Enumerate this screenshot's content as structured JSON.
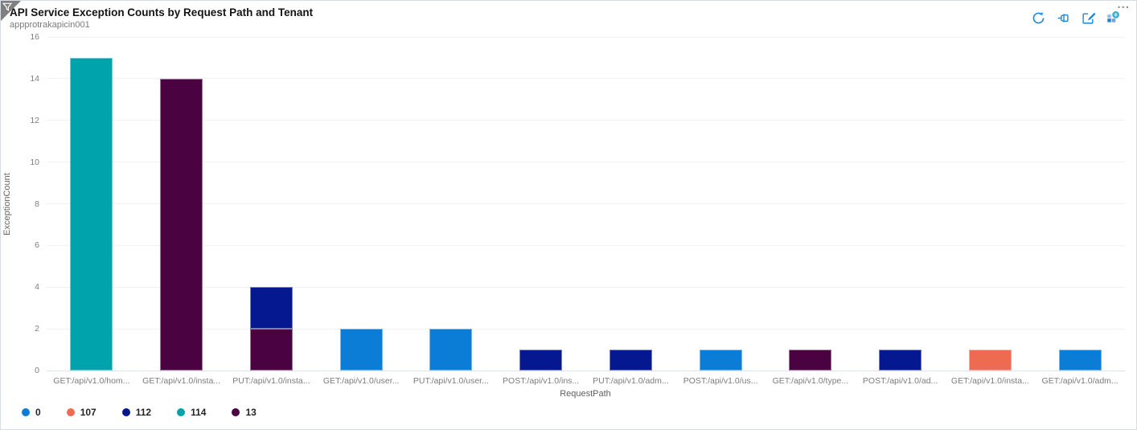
{
  "card": {
    "title": "API Service Exception Counts by Request Path and Tenant",
    "subtitle": "appprotrakapicin001",
    "more_label": "...",
    "toolbar_icons": [
      "refresh-icon",
      "pin-icon",
      "edit-icon",
      "open-in-metrics-icon"
    ],
    "filter_badge_icon": "filter-funnel-icon",
    "accent_color": "#1b86d8"
  },
  "chart_data": {
    "type": "bar",
    "stacked": true,
    "title": "API Service Exception Counts by Request Path and Tenant",
    "xlabel": "RequestPath",
    "ylabel": "ExceptionCount",
    "ylim": [
      0,
      16
    ],
    "yticks": [
      0,
      2,
      4,
      6,
      8,
      10,
      12,
      14,
      16
    ],
    "grid": true,
    "legend_position": "bottom",
    "categories": [
      "GET:/api/v1.0/hom...",
      "GET:/api/v1.0/insta...",
      "PUT:/api/v1.0/insta...",
      "GET:/api/v1.0/user...",
      "PUT:/api/v1.0/user...",
      "POST:/api/v1.0/ins...",
      "PUT:/api/v1.0/adm...",
      "POST:/api/v1.0/us...",
      "GET:/api/v1.0/type...",
      "POST:/api/v1.0/ad...",
      "GET:/api/v1.0/insta...",
      "GET:/api/v1.0/adm..."
    ],
    "series": [
      {
        "name": "0",
        "color": "#0b7dd6",
        "values": [
          0,
          0,
          0,
          2,
          2,
          0,
          0,
          1,
          0,
          0,
          0,
          1
        ]
      },
      {
        "name": "107",
        "color": "#ee6b52",
        "values": [
          0,
          0,
          0,
          0,
          0,
          0,
          0,
          0,
          0,
          0,
          1,
          0
        ]
      },
      {
        "name": "112",
        "color": "#05188f",
        "values": [
          0,
          0,
          2,
          0,
          0,
          1,
          1,
          0,
          0,
          1,
          0,
          0
        ]
      },
      {
        "name": "114",
        "color": "#00a2ac",
        "values": [
          15,
          0,
          0,
          0,
          0,
          0,
          0,
          0,
          0,
          0,
          0,
          0
        ]
      },
      {
        "name": "13",
        "color": "#4a0241",
        "values": [
          0,
          14,
          2,
          0,
          0,
          0,
          0,
          0,
          1,
          0,
          0,
          0
        ]
      }
    ],
    "stack_order": [
      "0",
      "13",
      "107",
      "112",
      "114"
    ]
  }
}
